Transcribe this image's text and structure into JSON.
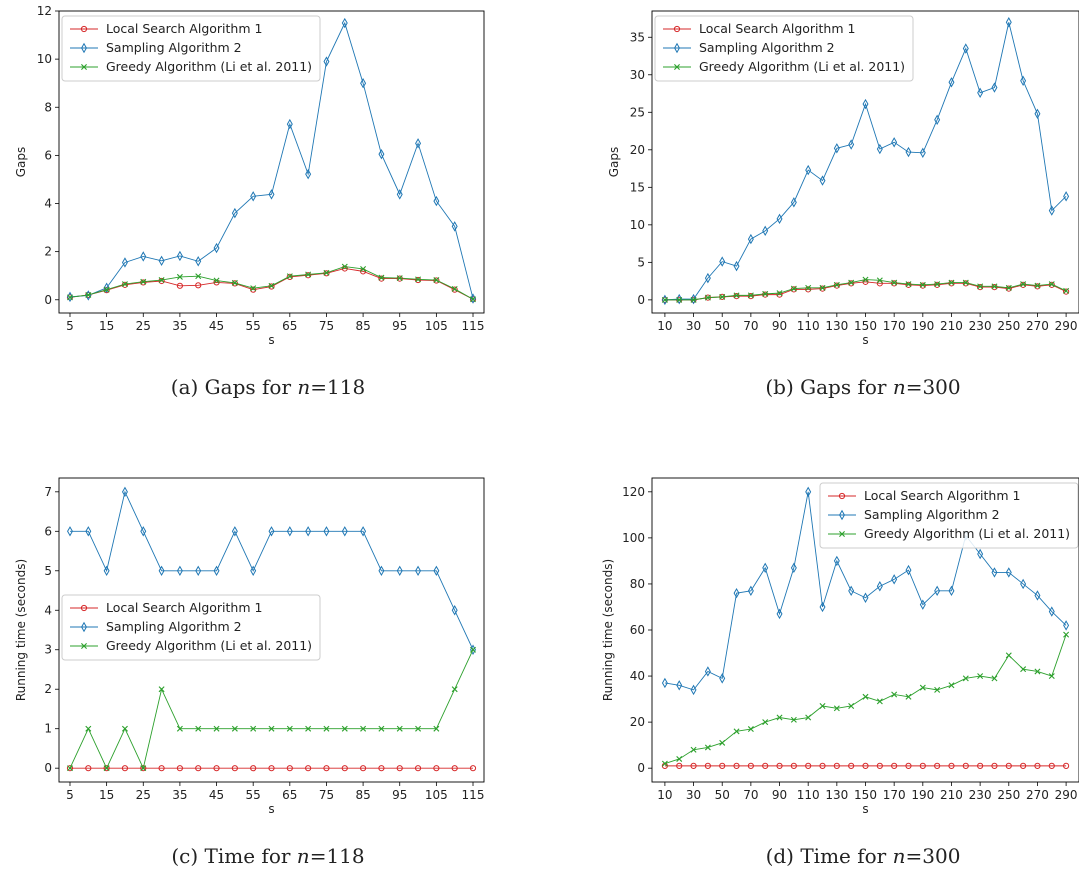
{
  "colors": {
    "local": "#d62728",
    "sampling": "#1f77b4",
    "greedy": "#2ca02c"
  },
  "chart_data": [
    {
      "type": "line",
      "caption_prefix": "(a) Gaps for ",
      "caption_var": "n",
      "caption_value": "=118",
      "xlabel": "s",
      "ylabel": "Gaps",
      "xlim": [
        2,
        118
      ],
      "ylim": [
        -0.55,
        12
      ],
      "xticks": [
        5,
        15,
        25,
        35,
        45,
        55,
        65,
        75,
        85,
        95,
        105,
        115
      ],
      "yticks": [
        0,
        2,
        4,
        6,
        8,
        10,
        12
      ],
      "legend_position": "upper-left",
      "x": [
        5,
        10,
        15,
        20,
        25,
        30,
        35,
        40,
        45,
        50,
        55,
        60,
        65,
        70,
        75,
        80,
        85,
        90,
        95,
        100,
        105,
        110,
        115
      ],
      "series": [
        {
          "name": "Local Search Algorithm 1",
          "color_key": "local",
          "marker": "circle",
          "values": [
            0.1,
            0.2,
            0.4,
            0.62,
            0.72,
            0.78,
            0.58,
            0.6,
            0.72,
            0.68,
            0.42,
            0.55,
            0.95,
            1.02,
            1.1,
            1.3,
            1.18,
            0.88,
            0.88,
            0.82,
            0.8,
            0.42,
            0.02
          ]
        },
        {
          "name": "Sampling Algorithm 2",
          "color_key": "sampling",
          "marker": "diamond",
          "values": [
            0.12,
            0.18,
            0.5,
            1.55,
            1.8,
            1.62,
            1.82,
            1.6,
            2.15,
            3.6,
            4.3,
            4.38,
            7.3,
            5.22,
            9.9,
            11.5,
            9.0,
            6.05,
            4.38,
            6.5,
            4.1,
            3.05,
            0.05
          ]
        },
        {
          "name": "Greedy Algorithm (Li et al. 2011)",
          "color_key": "greedy",
          "marker": "x",
          "values": [
            0.1,
            0.2,
            0.42,
            0.65,
            0.75,
            0.82,
            0.95,
            0.98,
            0.8,
            0.7,
            0.48,
            0.58,
            0.98,
            1.05,
            1.12,
            1.38,
            1.28,
            0.92,
            0.9,
            0.85,
            0.82,
            0.45,
            0.02
          ]
        }
      ]
    },
    {
      "type": "line",
      "caption_prefix": "(b) Gaps for ",
      "caption_var": "n",
      "caption_value": "=300",
      "xlabel": "s",
      "ylabel": "Gaps",
      "xlim": [
        1,
        299
      ],
      "ylim": [
        -1.75,
        38.5
      ],
      "xticks": [
        10,
        30,
        50,
        70,
        90,
        110,
        130,
        150,
        170,
        190,
        210,
        230,
        250,
        270,
        290
      ],
      "yticks": [
        0,
        5,
        10,
        15,
        20,
        25,
        30,
        35
      ],
      "legend_position": "upper-left",
      "x": [
        10,
        20,
        30,
        40,
        50,
        60,
        70,
        80,
        90,
        100,
        110,
        120,
        130,
        140,
        150,
        160,
        170,
        180,
        190,
        200,
        210,
        220,
        230,
        240,
        250,
        260,
        270,
        280,
        290
      ],
      "series": [
        {
          "name": "Local Search Algorithm 1",
          "color_key": "local",
          "marker": "circle",
          "values": [
            0.0,
            0.0,
            0.0,
            0.3,
            0.4,
            0.5,
            0.5,
            0.7,
            0.7,
            1.4,
            1.4,
            1.5,
            1.9,
            2.2,
            2.4,
            2.2,
            2.2,
            2.0,
            1.9,
            2.0,
            2.2,
            2.2,
            1.7,
            1.7,
            1.5,
            2.0,
            1.8,
            2.0,
            1.1
          ]
        },
        {
          "name": "Sampling Algorithm 2",
          "color_key": "sampling",
          "marker": "diamond",
          "values": [
            0.0,
            0.1,
            0.1,
            2.9,
            5.1,
            4.5,
            8.1,
            9.2,
            10.8,
            13.0,
            17.3,
            15.9,
            20.2,
            20.7,
            26.1,
            20.1,
            21.0,
            19.7,
            19.6,
            24.0,
            29.0,
            33.5,
            27.6,
            28.3,
            37.0,
            29.2,
            24.8,
            11.9,
            13.8
          ]
        },
        {
          "name": "Greedy Algorithm (Li et al. 2011)",
          "color_key": "greedy",
          "marker": "x",
          "values": [
            0.0,
            0.0,
            0.0,
            0.3,
            0.4,
            0.6,
            0.6,
            0.8,
            0.9,
            1.5,
            1.6,
            1.6,
            2.0,
            2.3,
            2.7,
            2.6,
            2.3,
            2.1,
            2.0,
            2.1,
            2.3,
            2.3,
            1.8,
            1.8,
            1.6,
            2.1,
            1.9,
            2.1,
            1.2
          ]
        }
      ]
    },
    {
      "type": "line",
      "caption_prefix": "(c) Time for ",
      "caption_var": "n",
      "caption_value": "=118",
      "xlabel": "s",
      "ylabel": "Running time (seconds)",
      "xlim": [
        2,
        118
      ],
      "ylim": [
        -0.35,
        7.35
      ],
      "xticks": [
        5,
        15,
        25,
        35,
        45,
        55,
        65,
        75,
        85,
        95,
        105,
        115
      ],
      "yticks": [
        0,
        1,
        2,
        3,
        4,
        5,
        6,
        7
      ],
      "legend_position": "center-left",
      "x": [
        5,
        10,
        15,
        20,
        25,
        30,
        35,
        40,
        45,
        50,
        55,
        60,
        65,
        70,
        75,
        80,
        85,
        90,
        95,
        100,
        105,
        110,
        115
      ],
      "series": [
        {
          "name": "Local Search Algorithm 1",
          "color_key": "local",
          "marker": "circle",
          "values": [
            0,
            0,
            0,
            0,
            0,
            0,
            0,
            0,
            0,
            0,
            0,
            0,
            0,
            0,
            0,
            0,
            0,
            0,
            0,
            0,
            0,
            0,
            0
          ]
        },
        {
          "name": "Sampling Algorithm 2",
          "color_key": "sampling",
          "marker": "diamond",
          "values": [
            6,
            6,
            5,
            7,
            6,
            5,
            5,
            5,
            5,
            6,
            5,
            6,
            6,
            6,
            6,
            6,
            6,
            5,
            5,
            5,
            5,
            4,
            3
          ]
        },
        {
          "name": "Greedy Algorithm (Li et al. 2011)",
          "color_key": "greedy",
          "marker": "x",
          "values": [
            0,
            1,
            0,
            1,
            0,
            2,
            1,
            1,
            1,
            1,
            1,
            1,
            1,
            1,
            1,
            1,
            1,
            1,
            1,
            1,
            1,
            2,
            3
          ]
        }
      ]
    },
    {
      "type": "line",
      "caption_prefix": "(d) Time for ",
      "caption_var": "n",
      "caption_value": "=300",
      "xlabel": "s",
      "ylabel": "Running time (seconds)",
      "xlim": [
        1,
        299
      ],
      "ylim": [
        -6,
        126
      ],
      "xticks": [
        10,
        30,
        50,
        70,
        90,
        110,
        130,
        150,
        170,
        190,
        210,
        230,
        250,
        270,
        290
      ],
      "yticks": [
        0,
        20,
        40,
        60,
        80,
        100,
        120
      ],
      "legend_position": "upper-right",
      "x": [
        10,
        20,
        30,
        40,
        50,
        60,
        70,
        80,
        90,
        100,
        110,
        120,
        130,
        140,
        150,
        160,
        170,
        180,
        190,
        200,
        210,
        220,
        230,
        240,
        250,
        260,
        270,
        280,
        290
      ],
      "series": [
        {
          "name": "Local Search Algorithm 1",
          "color_key": "local",
          "marker": "circle",
          "values": [
            1,
            1,
            1,
            1,
            1,
            1,
            1,
            1,
            1,
            1,
            1,
            1,
            1,
            1,
            1,
            1,
            1,
            1,
            1,
            1,
            1,
            1,
            1,
            1,
            1,
            1,
            1,
            1,
            1
          ]
        },
        {
          "name": "Sampling Algorithm 2",
          "color_key": "sampling",
          "marker": "diamond",
          "values": [
            37,
            36,
            34,
            42,
            39,
            76,
            77,
            87,
            67,
            87,
            120,
            70,
            90,
            77,
            74,
            79,
            82,
            86,
            71,
            77,
            77,
            101,
            93,
            85,
            85,
            80,
            75,
            68,
            62
          ]
        },
        {
          "name": "Greedy Algorithm (Li et al. 2011)",
          "color_key": "greedy",
          "marker": "x",
          "values": [
            2,
            4,
            8,
            9,
            11,
            16,
            17,
            20,
            22,
            21,
            22,
            27,
            26,
            27,
            31,
            29,
            32,
            31,
            35,
            34,
            36,
            39,
            40,
            39,
            49,
            43,
            42,
            40,
            58
          ]
        }
      ]
    }
  ]
}
